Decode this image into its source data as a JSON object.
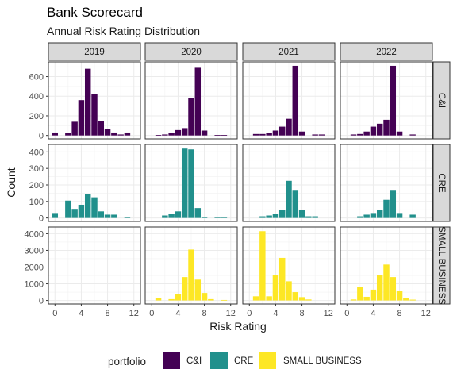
{
  "title": "Bank Scorecard",
  "subtitle": "Annual Risk Rating Distribution",
  "legend": {
    "title": "portfolio",
    "items": [
      {
        "label": "C&I",
        "color": "#440154"
      },
      {
        "label": "CRE",
        "color": "#21908C"
      },
      {
        "label": "SMALL BUSINESS",
        "color": "#FDE725"
      }
    ]
  },
  "chart_data": {
    "type": "bar",
    "title": "Bank Scorecard",
    "subtitle": "Annual Risk Rating Distribution",
    "xlabel": "Risk Rating",
    "ylabel": "Count",
    "facet_columns": [
      "2019",
      "2020",
      "2021",
      "2022"
    ],
    "facet_rows": [
      "C&I",
      "CRE",
      "SMALL BUSINESS"
    ],
    "x_ticks": [
      0,
      4,
      8,
      12
    ],
    "xlim": [
      -1,
      13
    ],
    "grid": true,
    "legend_position": "bottom",
    "panels": {
      "C&I": {
        "ylim": [
          -35,
          750
        ],
        "y_ticks": [
          0,
          200,
          400,
          600
        ],
        "years": {
          "2019": {
            "x": [
              0,
              2,
              3,
              4,
              5,
              6,
              7,
              8,
              9,
              10,
              11
            ],
            "y": [
              30,
              25,
              140,
              360,
              680,
              420,
              150,
              65,
              30,
              10,
              30
            ]
          },
          "2020": {
            "x": [
              1,
              2,
              3,
              4,
              5,
              6,
              7,
              8,
              10,
              11
            ],
            "y": [
              5,
              10,
              25,
              55,
              75,
              380,
              690,
              50,
              5,
              5
            ]
          },
          "2021": {
            "x": [
              1,
              2,
              3,
              4,
              5,
              6,
              7,
              8,
              10,
              11
            ],
            "y": [
              15,
              15,
              25,
              50,
              90,
              170,
              710,
              40,
              10,
              10
            ]
          },
          "2022": {
            "x": [
              1,
              2,
              3,
              4,
              5,
              6,
              7,
              8,
              10
            ],
            "y": [
              10,
              15,
              40,
              90,
              120,
              160,
              710,
              40,
              10
            ]
          }
        }
      },
      "CRE": {
        "ylim": [
          -21,
          445
        ],
        "y_ticks": [
          0,
          100,
          200,
          300,
          400
        ],
        "years": {
          "2019": {
            "x": [
              0,
              2,
              3,
              4,
              5,
              6,
              7,
              8,
              9,
              11
            ],
            "y": [
              30,
              105,
              55,
              80,
              145,
              125,
              40,
              20,
              20,
              5
            ]
          },
          "2020": {
            "x": [
              2,
              3,
              4,
              5,
              6,
              7,
              8,
              10,
              11
            ],
            "y": [
              15,
              25,
              40,
              420,
              415,
              60,
              5,
              5,
              5
            ]
          },
          "2021": {
            "x": [
              2,
              3,
              4,
              5,
              6,
              7,
              8,
              9,
              10
            ],
            "y": [
              10,
              15,
              25,
              50,
              225,
              170,
              50,
              10,
              10
            ]
          },
          "2022": {
            "x": [
              2,
              3,
              4,
              5,
              6,
              7,
              8,
              10
            ],
            "y": [
              10,
              20,
              30,
              50,
              110,
              170,
              30,
              20
            ]
          }
        }
      },
      "SMALL BUSINESS": {
        "ylim": [
          -210,
          4400
        ],
        "y_ticks": [
          0,
          1000,
          2000,
          3000,
          4000
        ],
        "years": {
          "2019": {
            "x": [],
            "y": []
          },
          "2020": {
            "x": [
              1,
              3,
              4,
              5,
              6,
              7,
              8,
              9,
              11
            ],
            "y": [
              150,
              80,
              400,
              1400,
              3050,
              1250,
              450,
              80,
              30
            ]
          },
          "2021": {
            "x": [
              1,
              2,
              3,
              4,
              5,
              6,
              7,
              8,
              9
            ],
            "y": [
              250,
              4150,
              250,
              1500,
              2550,
              1150,
              500,
              200,
              60
            ]
          },
          "2022": {
            "x": [
              1,
              2,
              3,
              4,
              5,
              6,
              7,
              8,
              9,
              10
            ],
            "y": [
              60,
              800,
              220,
              650,
              1500,
              2150,
              1400,
              550,
              150,
              50
            ]
          }
        }
      }
    }
  }
}
